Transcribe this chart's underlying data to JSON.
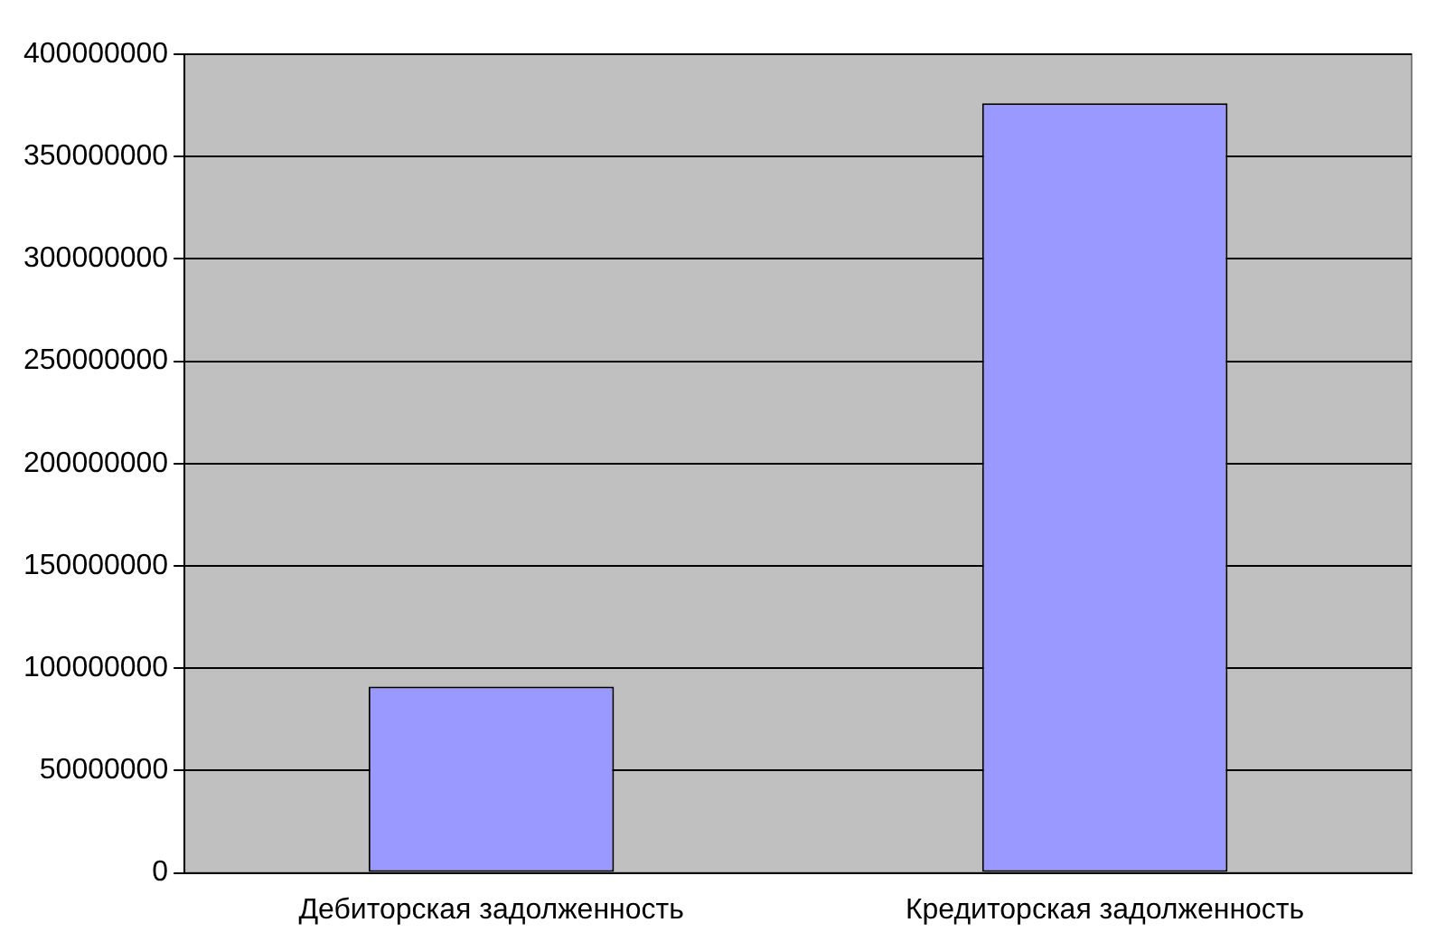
{
  "chart_data": {
    "type": "bar",
    "categories": [
      "Дебиторская задолженность",
      "Кредиторская задолженность"
    ],
    "values": [
      91000000,
      376000000
    ],
    "color": "#9999ff",
    "ylim": [
      0,
      400000000
    ],
    "yticks": [
      0,
      50000000,
      100000000,
      150000000,
      200000000,
      250000000,
      300000000,
      350000000,
      400000000
    ],
    "grid": "y",
    "legend": false
  }
}
